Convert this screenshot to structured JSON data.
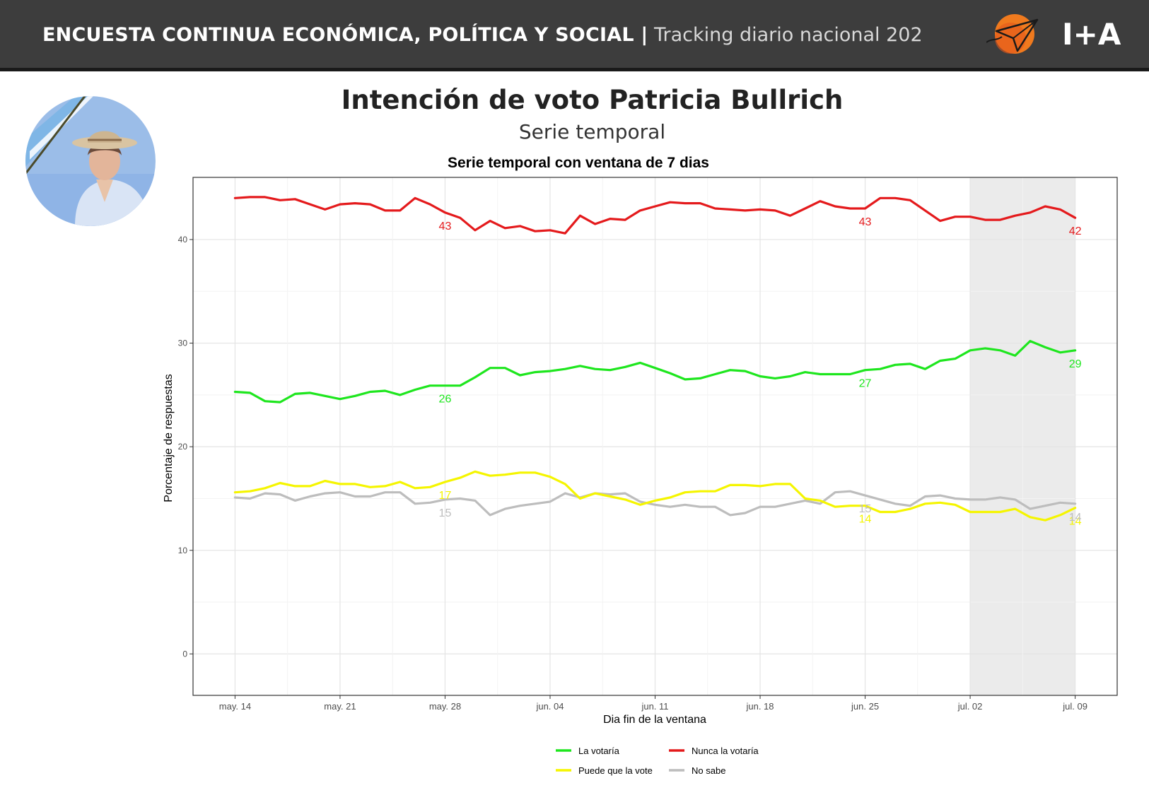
{
  "header": {
    "title_bold": "ENCUESTA CONTINUA ECONÓMICA, POLÍTICA Y SOCIAL |",
    "title_light": "Tracking diario nacional 202",
    "logo_text": "I+A",
    "bar_color": "#3d3d3d"
  },
  "page": {
    "title": "Intención de voto Patricia Bullrich",
    "subtitle": "Serie temporal"
  },
  "avatar": {
    "icon": "portrait-photo"
  },
  "chart_data": {
    "type": "line",
    "title": "Serie temporal con ventana de 7 dias",
    "xlabel": "Dia fin de la ventana",
    "ylabel": "Porcentaje de respuestas",
    "ylim": [
      -4,
      46
    ],
    "yticks": [
      0,
      10,
      20,
      30,
      40
    ],
    "x_start": "2023-05-14",
    "xticks": [
      {
        "day": 0,
        "label": "may. 14"
      },
      {
        "day": 7,
        "label": "may. 21"
      },
      {
        "day": 14,
        "label": "may. 28"
      },
      {
        "day": 21,
        "label": "jun. 04"
      },
      {
        "day": 28,
        "label": "jun. 11"
      },
      {
        "day": 35,
        "label": "jun. 18"
      },
      {
        "day": 42,
        "label": "jun. 25"
      },
      {
        "day": 49,
        "label": "jul. 02"
      },
      {
        "day": 56,
        "label": "jul. 09"
      }
    ],
    "xlim": [
      -2.8,
      58.8
    ],
    "shaded_region": [
      49,
      56
    ],
    "grid": true,
    "legend_position": "bottom",
    "series": [
      {
        "name": "Nunca la votaría",
        "color": "#e41a1c",
        "values": [
          44.0,
          44.1,
          44.1,
          43.8,
          43.9,
          43.4,
          42.9,
          43.4,
          43.5,
          43.4,
          42.8,
          42.8,
          44.0,
          43.4,
          42.6,
          42.1,
          40.9,
          41.8,
          41.1,
          41.3,
          40.8,
          40.9,
          40.6,
          42.3,
          41.5,
          42.0,
          41.9,
          42.8,
          43.2,
          43.6,
          43.5,
          43.5,
          43.0,
          42.9,
          42.8,
          42.9,
          42.8,
          42.3,
          43.0,
          43.7,
          43.2,
          43.0,
          43.0,
          44.0,
          44.0,
          43.8,
          42.8,
          41.8,
          42.2,
          42.2,
          41.9,
          41.9,
          42.3,
          42.6,
          43.2,
          42.9,
          42.1
        ],
        "labels": [
          {
            "day": 14,
            "text": "43"
          },
          {
            "day": 42,
            "text": "43"
          },
          {
            "day": 56,
            "text": "42"
          }
        ]
      },
      {
        "name": "La votaría",
        "color": "#1ee61e",
        "values": [
          25.3,
          25.2,
          24.4,
          24.3,
          25.1,
          25.2,
          24.9,
          24.6,
          24.9,
          25.3,
          25.4,
          25.0,
          25.5,
          25.9,
          25.9,
          25.9,
          26.7,
          27.6,
          27.6,
          26.9,
          27.2,
          27.3,
          27.5,
          27.8,
          27.5,
          27.4,
          27.7,
          28.1,
          27.6,
          27.1,
          26.5,
          26.6,
          27.0,
          27.4,
          27.3,
          26.8,
          26.6,
          26.8,
          27.2,
          27.0,
          27.0,
          27.0,
          27.4,
          27.5,
          27.9,
          28.0,
          27.5,
          28.3,
          28.5,
          29.3,
          29.5,
          29.3,
          28.8,
          30.2,
          29.6,
          29.1,
          29.3
        ],
        "labels": [
          {
            "day": 14,
            "text": "26"
          },
          {
            "day": 42,
            "text": "27"
          },
          {
            "day": 56,
            "text": "29"
          }
        ]
      },
      {
        "name": "Puede que la vote",
        "color": "#f5f500",
        "values": [
          15.6,
          15.7,
          16.0,
          16.5,
          16.2,
          16.2,
          16.7,
          16.4,
          16.4,
          16.1,
          16.2,
          16.6,
          16.0,
          16.1,
          16.6,
          17.0,
          17.6,
          17.2,
          17.3,
          17.5,
          17.5,
          17.1,
          16.4,
          15.0,
          15.5,
          15.2,
          14.9,
          14.4,
          14.8,
          15.1,
          15.6,
          15.7,
          15.7,
          16.3,
          16.3,
          16.2,
          16.4,
          16.4,
          15.0,
          14.8,
          14.2,
          14.3,
          14.3,
          13.7,
          13.7,
          14.0,
          14.5,
          14.6,
          14.4,
          13.7,
          13.7,
          13.7,
          14.0,
          13.2,
          12.9,
          13.4,
          14.1
        ],
        "labels": [
          {
            "day": 14,
            "text": "17"
          },
          {
            "day": 42,
            "text": "14"
          },
          {
            "day": 56,
            "text": "14"
          }
        ]
      },
      {
        "name": "No sabe",
        "color": "#bdbdbd",
        "values": [
          15.1,
          15.0,
          15.5,
          15.4,
          14.8,
          15.2,
          15.5,
          15.6,
          15.2,
          15.2,
          15.6,
          15.6,
          14.5,
          14.6,
          14.9,
          15.0,
          14.8,
          13.4,
          14.0,
          14.3,
          14.5,
          14.7,
          15.5,
          15.1,
          15.5,
          15.4,
          15.5,
          14.7,
          14.4,
          14.2,
          14.4,
          14.2,
          14.2,
          13.4,
          13.6,
          14.2,
          14.2,
          14.5,
          14.8,
          14.5,
          15.6,
          15.7,
          15.3,
          14.9,
          14.5,
          14.3,
          15.2,
          15.3,
          15.0,
          14.9,
          14.9,
          15.1,
          14.9,
          14.0,
          14.3,
          14.6,
          14.5
        ],
        "labels": [
          {
            "day": 14,
            "text": "15"
          },
          {
            "day": 42,
            "text": "15"
          },
          {
            "day": 56,
            "text": "14"
          }
        ]
      }
    ],
    "legend": [
      {
        "name": "La votaría",
        "color": "#1ee61e"
      },
      {
        "name": "Nunca la votaría",
        "color": "#e41a1c"
      },
      {
        "name": "Puede que la vote",
        "color": "#f5f500"
      },
      {
        "name": "No sabe",
        "color": "#bdbdbd"
      }
    ]
  }
}
